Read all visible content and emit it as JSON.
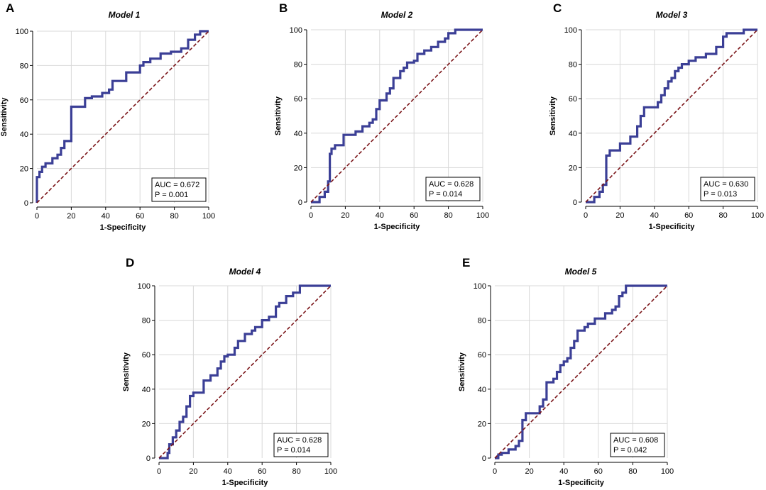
{
  "chart_data": [
    {
      "type": "line",
      "panel": "A",
      "title": "Model 1",
      "xlabel": "1-Specificity",
      "ylabel": "Sensitivity",
      "xlim": [
        0,
        100
      ],
      "ylim": [
        0,
        100
      ],
      "xticks": [
        "0",
        "20",
        "40",
        "60",
        "80",
        "100"
      ],
      "yticks": [
        "0",
        "20",
        "40",
        "60",
        "80",
        "100"
      ],
      "grid": true,
      "stat_lines": [
        "AUC = 0.672",
        "P = 0.001"
      ],
      "series": [
        {
          "name": "ROC curve",
          "color": "#3b3f96",
          "x": [
            0,
            0,
            1.5,
            1.5,
            3,
            3,
            5,
            5,
            9,
            9,
            12,
            12,
            14,
            14,
            16,
            16,
            20,
            20,
            28,
            28,
            32,
            32,
            38,
            38,
            42,
            42,
            44,
            44,
            52,
            52,
            60,
            60,
            62,
            62,
            66,
            66,
            72,
            72,
            78,
            78,
            84,
            84,
            88,
            88,
            92,
            92,
            95,
            95,
            100
          ],
          "y": [
            0,
            15,
            15,
            18,
            18,
            21,
            21,
            23,
            23,
            26,
            26,
            28,
            28,
            32,
            32,
            36,
            36,
            56,
            56,
            61,
            61,
            62,
            62,
            64,
            64,
            66,
            66,
            71,
            71,
            76,
            76,
            80,
            80,
            82,
            82,
            84,
            84,
            87,
            87,
            88,
            88,
            90,
            90,
            95,
            95,
            98,
            98,
            100,
            100
          ]
        },
        {
          "name": "Reference line",
          "color": "#7a1418",
          "dashed": true,
          "x": [
            0,
            100
          ],
          "y": [
            0,
            100
          ]
        }
      ]
    },
    {
      "type": "line",
      "panel": "B",
      "title": "Model 2",
      "xlabel": "1-Specificity",
      "ylabel": "Sensitivity",
      "xlim": [
        0,
        100
      ],
      "ylim": [
        0,
        100
      ],
      "xticks": [
        "0",
        "20",
        "40",
        "60",
        "80",
        "100"
      ],
      "yticks": [
        "0",
        "20",
        "40",
        "60",
        "80",
        "100"
      ],
      "grid": true,
      "stat_lines": [
        "AUC = 0.628",
        "P = 0.014"
      ],
      "series": [
        {
          "name": "ROC curve",
          "color": "#3b3f96",
          "x": [
            0,
            0,
            5,
            5,
            8,
            8,
            10,
            10,
            11,
            11,
            12,
            12,
            14,
            14,
            19,
            19,
            26,
            26,
            30,
            30,
            34,
            34,
            36,
            36,
            38,
            38,
            40,
            40,
            44,
            44,
            46,
            46,
            48,
            48,
            52,
            52,
            54,
            54,
            56,
            56,
            60,
            60,
            62,
            62,
            66,
            66,
            70,
            70,
            74,
            74,
            78,
            78,
            80,
            80,
            84,
            84,
            100
          ],
          "y": [
            0,
            0,
            0,
            3,
            3,
            6,
            6,
            12,
            12,
            28,
            28,
            31,
            31,
            33,
            33,
            39,
            39,
            41,
            41,
            44,
            44,
            46,
            46,
            48,
            48,
            54,
            54,
            59,
            59,
            63,
            63,
            66,
            66,
            72,
            72,
            76,
            76,
            78,
            78,
            81,
            81,
            82,
            82,
            86,
            86,
            88,
            88,
            90,
            90,
            93,
            93,
            95,
            95,
            98,
            98,
            100,
            100
          ]
        },
        {
          "name": "Reference line",
          "color": "#7a1418",
          "dashed": true,
          "x": [
            0,
            100
          ],
          "y": [
            0,
            100
          ]
        }
      ]
    },
    {
      "type": "line",
      "panel": "C",
      "title": "Model 3",
      "xlabel": "1-Specificity",
      "ylabel": "Sensitivity",
      "xlim": [
        0,
        100
      ],
      "ylim": [
        0,
        100
      ],
      "xticks": [
        "0",
        "20",
        "40",
        "60",
        "80",
        "100"
      ],
      "yticks": [
        "0",
        "20",
        "40",
        "60",
        "80",
        "100"
      ],
      "grid": true,
      "stat_lines": [
        "AUC = 0.630",
        "P = 0.013"
      ],
      "series": [
        {
          "name": "ROC curve",
          "color": "#3b3f96",
          "x": [
            0,
            0,
            5,
            5,
            8,
            8,
            10,
            10,
            12,
            12,
            14,
            14,
            20,
            20,
            26,
            26,
            30,
            30,
            32,
            32,
            34,
            34,
            42,
            42,
            44,
            44,
            46,
            46,
            48,
            48,
            50,
            50,
            52,
            52,
            54,
            54,
            56,
            56,
            60,
            60,
            64,
            64,
            70,
            70,
            76,
            76,
            80,
            80,
            82,
            82,
            92,
            92,
            100
          ],
          "y": [
            0,
            0,
            0,
            3,
            3,
            6,
            6,
            10,
            10,
            27,
            27,
            30,
            30,
            34,
            34,
            38,
            38,
            44,
            44,
            50,
            50,
            55,
            55,
            58,
            58,
            62,
            62,
            66,
            66,
            70,
            70,
            72,
            72,
            76,
            76,
            78,
            78,
            80,
            80,
            82,
            82,
            84,
            84,
            86,
            86,
            90,
            90,
            96,
            96,
            98,
            98,
            100,
            100
          ]
        },
        {
          "name": "Reference line",
          "color": "#7a1418",
          "dashed": true,
          "x": [
            0,
            100
          ],
          "y": [
            0,
            100
          ]
        }
      ]
    },
    {
      "type": "line",
      "panel": "D",
      "title": "Model 4",
      "xlabel": "1-Specificity",
      "ylabel": "Sensitivity",
      "xlim": [
        0,
        100
      ],
      "ylim": [
        0,
        100
      ],
      "xticks": [
        "0",
        "20",
        "40",
        "60",
        "80",
        "100"
      ],
      "yticks": [
        "0",
        "20",
        "40",
        "60",
        "80",
        "100"
      ],
      "grid": true,
      "stat_lines": [
        "AUC = 0.628",
        "P = 0.014"
      ],
      "series": [
        {
          "name": "ROC curve",
          "color": "#3b3f96",
          "x": [
            0,
            0,
            5,
            5,
            6,
            6,
            8,
            8,
            10,
            10,
            12,
            12,
            14,
            14,
            16,
            16,
            18,
            18,
            20,
            20,
            26,
            26,
            30,
            30,
            34,
            34,
            36,
            36,
            38,
            38,
            40,
            40,
            44,
            44,
            46,
            46,
            50,
            50,
            54,
            54,
            56,
            56,
            60,
            60,
            64,
            64,
            68,
            68,
            70,
            70,
            74,
            74,
            78,
            78,
            82,
            82,
            100
          ],
          "y": [
            0,
            0,
            0,
            3,
            3,
            8,
            8,
            12,
            12,
            16,
            16,
            21,
            21,
            24,
            24,
            30,
            30,
            36,
            36,
            38,
            38,
            45,
            45,
            48,
            48,
            52,
            52,
            56,
            56,
            59,
            59,
            60,
            60,
            64,
            64,
            68,
            68,
            72,
            72,
            74,
            74,
            76,
            76,
            80,
            80,
            82,
            82,
            88,
            88,
            90,
            90,
            94,
            94,
            96,
            96,
            100,
            100
          ]
        },
        {
          "name": "Reference line",
          "color": "#7a1418",
          "dashed": true,
          "x": [
            0,
            100
          ],
          "y": [
            0,
            100
          ]
        }
      ]
    },
    {
      "type": "line",
      "panel": "E",
      "title": "Model 5",
      "xlabel": "1-Specificity",
      "ylabel": "Sensitivity",
      "xlim": [
        0,
        100
      ],
      "ylim": [
        0,
        100
      ],
      "xticks": [
        "0",
        "20",
        "40",
        "60",
        "80",
        "100"
      ],
      "yticks": [
        "0",
        "20",
        "40",
        "60",
        "80",
        "100"
      ],
      "grid": true,
      "stat_lines": [
        "AUC = 0.608",
        "P = 0.042"
      ],
      "series": [
        {
          "name": "ROC curve",
          "color": "#3b3f96",
          "x": [
            0,
            0,
            2,
            2,
            4,
            4,
            8,
            8,
            12,
            12,
            14,
            14,
            16,
            16,
            18,
            18,
            26,
            26,
            28,
            28,
            30,
            30,
            34,
            34,
            36,
            36,
            38,
            38,
            40,
            40,
            42,
            42,
            44,
            44,
            46,
            46,
            48,
            48,
            52,
            52,
            54,
            54,
            58,
            58,
            64,
            64,
            68,
            68,
            70,
            70,
            72,
            72,
            74,
            74,
            76,
            76,
            100
          ],
          "y": [
            0,
            0,
            0,
            2,
            2,
            3,
            3,
            5,
            5,
            7,
            7,
            10,
            10,
            22,
            22,
            26,
            26,
            30,
            30,
            34,
            34,
            44,
            44,
            46,
            46,
            50,
            50,
            54,
            54,
            56,
            56,
            58,
            58,
            64,
            64,
            68,
            68,
            74,
            74,
            76,
            76,
            78,
            78,
            81,
            81,
            84,
            84,
            86,
            86,
            88,
            88,
            94,
            94,
            96,
            96,
            100,
            100
          ]
        },
        {
          "name": "Reference line",
          "color": "#7a1418",
          "dashed": true,
          "x": [
            0,
            100
          ],
          "y": [
            0,
            100
          ]
        }
      ]
    }
  ]
}
